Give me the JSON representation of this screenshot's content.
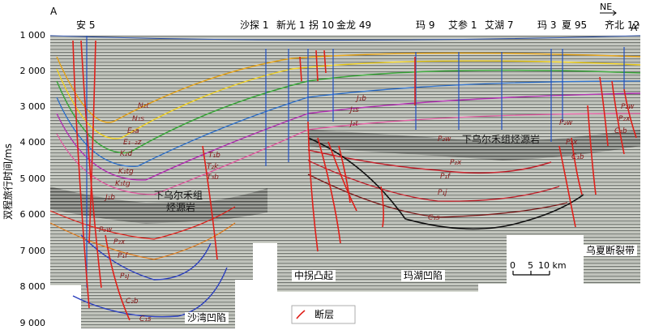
{
  "profile": {
    "start_label": "A",
    "end_label": "A'",
    "direction": "NE",
    "axis_title": "双程旅行时间/ms",
    "ticks": [
      "1 000",
      "2 000",
      "3 000",
      "4 000",
      "5 000",
      "6 000",
      "7 000",
      "8 000",
      "9 000"
    ]
  },
  "wells": [
    "安 5",
    "沙探 1",
    "新光 1",
    "拐 10",
    "金龙 49",
    "玛 9",
    "艾参 1",
    "艾湖 7",
    "玛 3",
    "夏 95",
    "齐北 12"
  ],
  "horizons": [
    "N₁t",
    "N₁s",
    "E₃a",
    "E₁₋₂z",
    "K₂d",
    "K₁tg",
    "K₁tg",
    "J₃q",
    "J₂t",
    "J₁b",
    "P₃w",
    "P₂x",
    "P₁f",
    "P₁j",
    "C₂b",
    "C₁s",
    "T₁b",
    "T₂k",
    "T₃b",
    "J₁b",
    "J₁s",
    "J₂t",
    "P₂w",
    "P₂x",
    "P₁f",
    "P₁j",
    "C₁s",
    "P₂w",
    "P₂x",
    "C₁b",
    "P₂w",
    "P₂x",
    "C₁b"
  ],
  "regions": {
    "source_left": "下乌尔禾组",
    "source_left2": "烃源岩",
    "source_right": "下乌尔禾组烃源岩",
    "zhongguai": "中拐凸起",
    "mahu": "玛湖凹陷",
    "shawan": "沙湾凹陷",
    "wuxia": "乌夏断裂带"
  },
  "scale": {
    "zero": "0",
    "five": "5",
    "ten": "10 km"
  },
  "legend": {
    "label": "断层"
  },
  "colors": {
    "fault": "#e0201a",
    "well": "#1f4fc4",
    "source": "#6e6e6e"
  }
}
